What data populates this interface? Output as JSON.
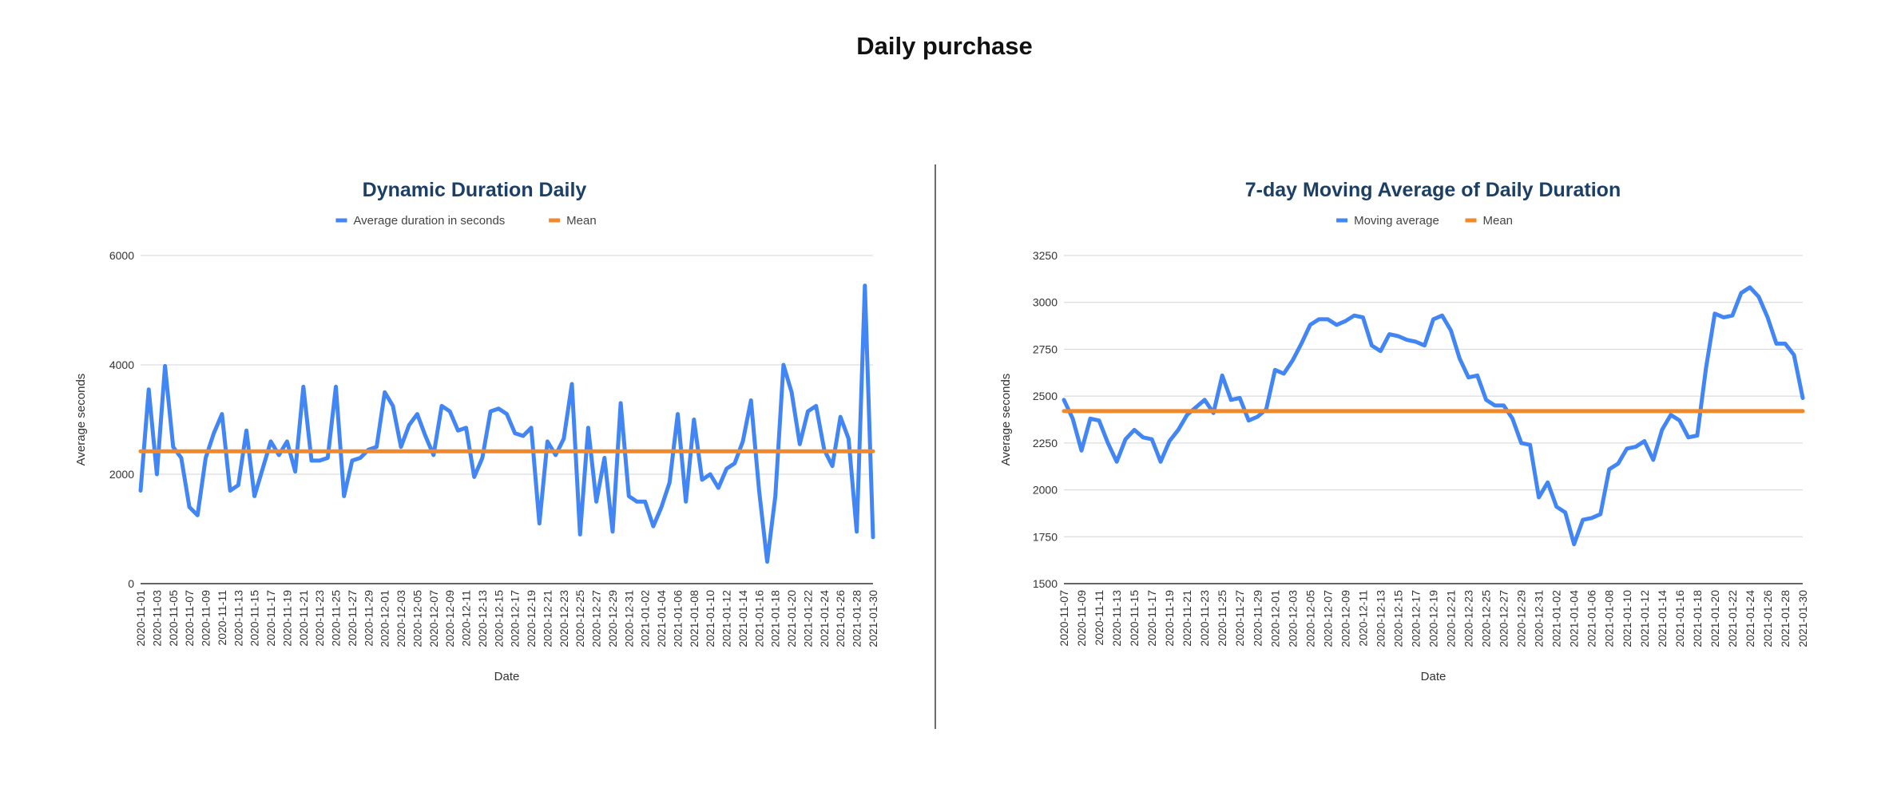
{
  "page": {
    "title": "Daily purchase"
  },
  "chart_data": [
    {
      "type": "line",
      "title": "Dynamic Duration Daily",
      "xlabel": "Date",
      "ylabel": "Average seconds",
      "ylim": [
        0,
        6000
      ],
      "yticks": [
        0,
        2000,
        4000,
        6000
      ],
      "grid": true,
      "legend_position": "top",
      "x": [
        "2020-11-01",
        "2020-11-02",
        "2020-11-03",
        "2020-11-04",
        "2020-11-05",
        "2020-11-06",
        "2020-11-07",
        "2020-11-08",
        "2020-11-09",
        "2020-11-10",
        "2020-11-11",
        "2020-11-12",
        "2020-11-13",
        "2020-11-14",
        "2020-11-15",
        "2020-11-16",
        "2020-11-17",
        "2020-11-18",
        "2020-11-19",
        "2020-11-20",
        "2020-11-21",
        "2020-11-22",
        "2020-11-23",
        "2020-11-24",
        "2020-11-25",
        "2020-11-26",
        "2020-11-27",
        "2020-11-28",
        "2020-11-29",
        "2020-11-30",
        "2020-12-01",
        "2020-12-02",
        "2020-12-03",
        "2020-12-04",
        "2020-12-05",
        "2020-12-06",
        "2020-12-07",
        "2020-12-08",
        "2020-12-09",
        "2020-12-10",
        "2020-12-11",
        "2020-12-12",
        "2020-12-13",
        "2020-12-14",
        "2020-12-15",
        "2020-12-16",
        "2020-12-17",
        "2020-12-18",
        "2020-12-19",
        "2020-12-20",
        "2020-12-21",
        "2020-12-22",
        "2020-12-23",
        "2020-12-24",
        "2020-12-25",
        "2020-12-26",
        "2020-12-27",
        "2020-12-28",
        "2020-12-29",
        "2020-12-30",
        "2020-12-31",
        "2021-01-01",
        "2021-01-02",
        "2021-01-03",
        "2021-01-04",
        "2021-01-05",
        "2021-01-06",
        "2021-01-07",
        "2021-01-08",
        "2021-01-09",
        "2021-01-10",
        "2021-01-11",
        "2021-01-12",
        "2021-01-13",
        "2021-01-14",
        "2021-01-15",
        "2021-01-16",
        "2021-01-17",
        "2021-01-18",
        "2021-01-19",
        "2021-01-20",
        "2021-01-21",
        "2021-01-22",
        "2021-01-23",
        "2021-01-24",
        "2021-01-25",
        "2021-01-26",
        "2021-01-27",
        "2021-01-28",
        "2021-01-29",
        "2021-01-30"
      ],
      "tick_every": 2,
      "series": [
        {
          "name": "Average duration in seconds",
          "color": "#4285f4",
          "values": [
            1700,
            3550,
            2000,
            3980,
            2500,
            2300,
            1400,
            1250,
            2300,
            2750,
            3100,
            1700,
            1800,
            2800,
            1600,
            2100,
            2600,
            2350,
            2600,
            2050,
            3600,
            2250,
            2250,
            2300,
            3600,
            1600,
            2250,
            2300,
            2450,
            2500,
            3500,
            3250,
            2500,
            2900,
            3100,
            2700,
            2350,
            3250,
            3150,
            2800,
            2850,
            1950,
            2300,
            3150,
            3200,
            3100,
            2750,
            2700,
            2850,
            1100,
            2600,
            2350,
            2650,
            3650,
            900,
            2850,
            1500,
            2300,
            950,
            3300,
            1600,
            1500,
            1500,
            1050,
            1400,
            1850,
            3100,
            1500,
            3000,
            1900,
            2000,
            1750,
            2100,
            2200,
            2600,
            3350,
            1700,
            400,
            1600,
            4000,
            3500,
            2550,
            3150,
            3250,
            2450,
            2150,
            3050,
            2650,
            950,
            5450,
            850
          ]
        },
        {
          "name": "Mean",
          "color": "#f0892b",
          "values": [
            2420,
            2420,
            2420,
            2420,
            2420,
            2420,
            2420,
            2420,
            2420,
            2420,
            2420,
            2420,
            2420,
            2420,
            2420,
            2420,
            2420,
            2420,
            2420,
            2420,
            2420,
            2420,
            2420,
            2420,
            2420,
            2420,
            2420,
            2420,
            2420,
            2420,
            2420,
            2420,
            2420,
            2420,
            2420,
            2420,
            2420,
            2420,
            2420,
            2420,
            2420,
            2420,
            2420,
            2420,
            2420,
            2420,
            2420,
            2420,
            2420,
            2420,
            2420,
            2420,
            2420,
            2420,
            2420,
            2420,
            2420,
            2420,
            2420,
            2420,
            2420,
            2420,
            2420,
            2420,
            2420,
            2420,
            2420,
            2420,
            2420,
            2420,
            2420,
            2420,
            2420,
            2420,
            2420,
            2420,
            2420,
            2420,
            2420,
            2420,
            2420,
            2420,
            2420,
            2420,
            2420,
            2420,
            2420,
            2420,
            2420,
            2420,
            2420
          ]
        }
      ]
    },
    {
      "type": "line",
      "title": "7-day Moving Average of Daily Duration",
      "xlabel": "Date",
      "ylabel": "Average seconds",
      "ylim": [
        1500,
        3250
      ],
      "yticks": [
        1500,
        1750,
        2000,
        2250,
        2500,
        2750,
        3000,
        3250
      ],
      "grid": true,
      "legend_position": "top",
      "x": [
        "2020-11-07",
        "2020-11-08",
        "2020-11-09",
        "2020-11-10",
        "2020-11-11",
        "2020-11-12",
        "2020-11-13",
        "2020-11-14",
        "2020-11-15",
        "2020-11-16",
        "2020-11-17",
        "2020-11-18",
        "2020-11-19",
        "2020-11-20",
        "2020-11-21",
        "2020-11-22",
        "2020-11-23",
        "2020-11-24",
        "2020-11-25",
        "2020-11-26",
        "2020-11-27",
        "2020-11-28",
        "2020-11-29",
        "2020-11-30",
        "2020-12-01",
        "2020-12-02",
        "2020-12-03",
        "2020-12-04",
        "2020-12-05",
        "2020-12-06",
        "2020-12-07",
        "2020-12-08",
        "2020-12-09",
        "2020-12-10",
        "2020-12-11",
        "2020-12-12",
        "2020-12-13",
        "2020-12-14",
        "2020-12-15",
        "2020-12-16",
        "2020-12-17",
        "2020-12-18",
        "2020-12-19",
        "2020-12-20",
        "2020-12-21",
        "2020-12-22",
        "2020-12-23",
        "2020-12-24",
        "2020-12-25",
        "2020-12-26",
        "2020-12-27",
        "2020-12-28",
        "2020-12-29",
        "2020-12-30",
        "2020-12-31",
        "2021-01-01",
        "2021-01-02",
        "2021-01-03",
        "2021-01-04",
        "2021-01-05",
        "2021-01-06",
        "2021-01-07",
        "2021-01-08",
        "2021-01-09",
        "2021-01-10",
        "2021-01-11",
        "2021-01-12",
        "2021-01-13",
        "2021-01-14",
        "2021-01-15",
        "2021-01-16",
        "2021-01-17",
        "2021-01-18",
        "2021-01-19",
        "2021-01-20",
        "2021-01-21",
        "2021-01-22",
        "2021-01-23",
        "2021-01-24",
        "2021-01-25",
        "2021-01-26",
        "2021-01-27",
        "2021-01-28",
        "2021-01-29",
        "2021-01-30"
      ],
      "tick_every": 2,
      "series": [
        {
          "name": "Moving average",
          "color": "#4285f4",
          "values": [
            2480,
            2380,
            2210,
            2380,
            2370,
            2250,
            2150,
            2270,
            2320,
            2280,
            2270,
            2150,
            2260,
            2320,
            2400,
            2440,
            2480,
            2410,
            2610,
            2480,
            2490,
            2370,
            2390,
            2430,
            2640,
            2620,
            2690,
            2780,
            2880,
            2910,
            2910,
            2880,
            2900,
            2930,
            2920,
            2770,
            2740,
            2830,
            2820,
            2800,
            2790,
            2770,
            2910,
            2930,
            2850,
            2700,
            2600,
            2610,
            2480,
            2450,
            2450,
            2380,
            2250,
            2240,
            1960,
            2040,
            1910,
            1880,
            1710,
            1840,
            1850,
            1870,
            2110,
            2140,
            2220,
            2230,
            2260,
            2160,
            2320,
            2400,
            2370,
            2280,
            2290,
            2650,
            2940,
            2920,
            2930,
            3050,
            3080,
            3030,
            2920,
            2780,
            2780,
            2720,
            2490
          ]
        },
        {
          "name": "Mean",
          "color": "#f0892b",
          "values": [
            2420,
            2420,
            2420,
            2420,
            2420,
            2420,
            2420,
            2420,
            2420,
            2420,
            2420,
            2420,
            2420,
            2420,
            2420,
            2420,
            2420,
            2420,
            2420,
            2420,
            2420,
            2420,
            2420,
            2420,
            2420,
            2420,
            2420,
            2420,
            2420,
            2420,
            2420,
            2420,
            2420,
            2420,
            2420,
            2420,
            2420,
            2420,
            2420,
            2420,
            2420,
            2420,
            2420,
            2420,
            2420,
            2420,
            2420,
            2420,
            2420,
            2420,
            2420,
            2420,
            2420,
            2420,
            2420,
            2420,
            2420,
            2420,
            2420,
            2420,
            2420,
            2420,
            2420,
            2420,
            2420,
            2420,
            2420,
            2420,
            2420,
            2420,
            2420,
            2420,
            2420,
            2420,
            2420,
            2420,
            2420,
            2420,
            2420,
            2420,
            2420,
            2420,
            2420,
            2420,
            2420
          ]
        }
      ]
    }
  ]
}
